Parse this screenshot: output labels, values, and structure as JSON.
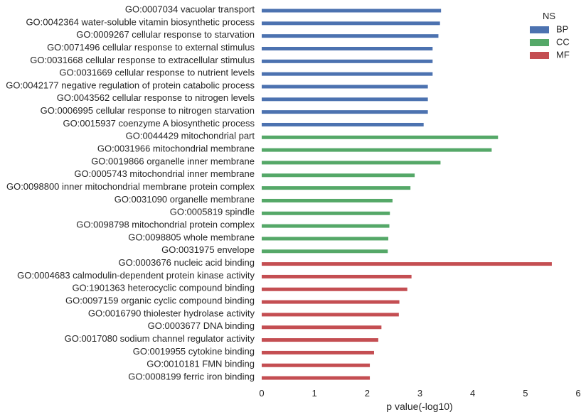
{
  "chart_data": {
    "type": "bar",
    "orientation": "horizontal",
    "xlabel": "p value(-log10)",
    "xlim": [
      0,
      6
    ],
    "xticks": [
      "0",
      "1",
      "2",
      "3",
      "4",
      "5",
      "6"
    ],
    "grid": false,
    "legend": {
      "title": "NS",
      "placement": "top-right",
      "entries": [
        {
          "name": "BP",
          "color": "#4c72b0"
        },
        {
          "name": "CC",
          "color": "#55a868"
        },
        {
          "name": "MF",
          "color": "#c44e52"
        }
      ]
    },
    "bars": [
      {
        "label": "GO:0007034 vacuolar transport",
        "value": 3.4,
        "ns": "BP"
      },
      {
        "label": "GO:0042364 water-soluble vitamin biosynthetic process",
        "value": 3.38,
        "ns": "BP"
      },
      {
        "label": "GO:0009267 cellular response to starvation",
        "value": 3.35,
        "ns": "BP"
      },
      {
        "label": "GO:0071496 cellular response to external stimulus",
        "value": 3.24,
        "ns": "BP"
      },
      {
        "label": "GO:0031668 cellular response to extracellular stimulus",
        "value": 3.24,
        "ns": "BP"
      },
      {
        "label": "GO:0031669 cellular response to nutrient levels",
        "value": 3.24,
        "ns": "BP"
      },
      {
        "label": "GO:0042177 negative regulation of protein catabolic process",
        "value": 3.15,
        "ns": "BP"
      },
      {
        "label": "GO:0043562 cellular response to nitrogen levels",
        "value": 3.15,
        "ns": "BP"
      },
      {
        "label": "GO:0006995 cellular response to nitrogen starvation",
        "value": 3.15,
        "ns": "BP"
      },
      {
        "label": "GO:0015937 coenzyme A biosynthetic process",
        "value": 3.07,
        "ns": "BP"
      },
      {
        "label": "GO:0044429 mitochondrial part",
        "value": 4.48,
        "ns": "CC"
      },
      {
        "label": "GO:0031966 mitochondrial membrane",
        "value": 4.36,
        "ns": "CC"
      },
      {
        "label": "GO:0019866 organelle inner membrane",
        "value": 3.39,
        "ns": "CC"
      },
      {
        "label": "GO:0005743 mitochondrial inner membrane",
        "value": 2.9,
        "ns": "CC"
      },
      {
        "label": "GO:0098800 inner mitochondrial membrane protein complex",
        "value": 2.82,
        "ns": "CC"
      },
      {
        "label": "GO:0031090 organelle membrane",
        "value": 2.48,
        "ns": "CC"
      },
      {
        "label": "GO:0005819 spindle",
        "value": 2.43,
        "ns": "CC"
      },
      {
        "label": "GO:0098798 mitochondrial protein complex",
        "value": 2.42,
        "ns": "CC"
      },
      {
        "label": "GO:0098805 whole membrane",
        "value": 2.4,
        "ns": "CC"
      },
      {
        "label": "GO:0031975 envelope",
        "value": 2.39,
        "ns": "CC"
      },
      {
        "label": "GO:0003676 nucleic acid binding",
        "value": 5.5,
        "ns": "MF"
      },
      {
        "label": "GO:0004683 calmodulin-dependent protein kinase activity",
        "value": 2.84,
        "ns": "MF"
      },
      {
        "label": "GO:1901363 heterocyclic compound binding",
        "value": 2.76,
        "ns": "MF"
      },
      {
        "label": "GO:0097159 organic cyclic compound binding",
        "value": 2.61,
        "ns": "MF"
      },
      {
        "label": "GO:0016790 thiolester hydrolase activity",
        "value": 2.6,
        "ns": "MF"
      },
      {
        "label": "GO:0003677 DNA binding",
        "value": 2.27,
        "ns": "MF"
      },
      {
        "label": "GO:0017080 sodium channel regulator activity",
        "value": 2.21,
        "ns": "MF"
      },
      {
        "label": "GO:0019955 cytokine binding",
        "value": 2.13,
        "ns": "MF"
      },
      {
        "label": "GO:0010181 FMN binding",
        "value": 2.05,
        "ns": "MF"
      },
      {
        "label": "GO:0008199 ferric iron binding",
        "value": 2.05,
        "ns": "MF"
      }
    ]
  }
}
